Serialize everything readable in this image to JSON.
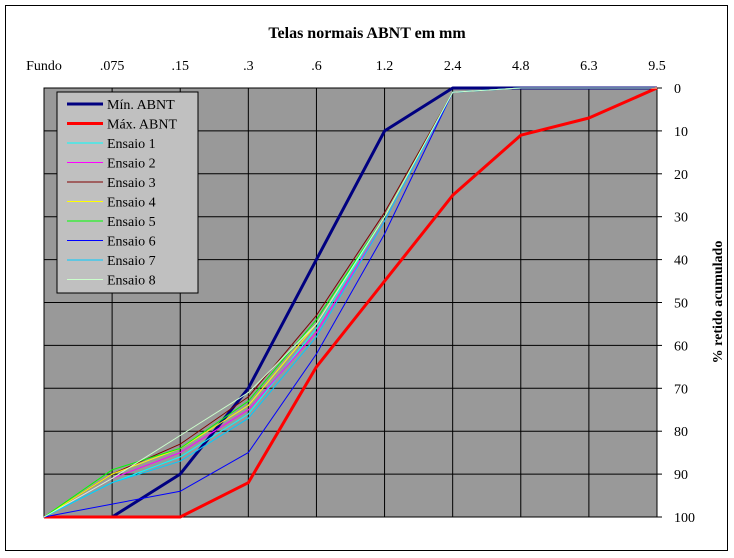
{
  "chart_data": {
    "type": "line",
    "title": "Telas normais ABNT em mm",
    "ylabel": "% retido acumulado",
    "xlabel": "",
    "categories": [
      "Fundo",
      ".075",
      ".15",
      ".3",
      ".6",
      "1.2",
      "2.4",
      "4.8",
      "6.3",
      "9.5"
    ],
    "ylim": [
      0,
      100
    ],
    "y_inverted": true,
    "y_ticks": [
      0,
      10,
      20,
      30,
      40,
      50,
      60,
      70,
      80,
      90,
      100
    ],
    "grid": true,
    "legend": "top-left",
    "plot_background": "#999999",
    "series": [
      {
        "name": "Mín. ABNT",
        "color": "#000080",
        "width": 3,
        "values": [
          100,
          100,
          90,
          70,
          40,
          10,
          0,
          0,
          0,
          0
        ]
      },
      {
        "name": "Máx. ABNT",
        "color": "#ff0000",
        "width": 3,
        "values": [
          100,
          100,
          100,
          92,
          65,
          45,
          25,
          11,
          7,
          0
        ]
      },
      {
        "name": "Ensaio 1",
        "color": "#00ffff",
        "width": 1,
        "values": [
          100,
          92,
          86,
          76,
          56,
          30,
          1,
          0,
          0,
          0
        ]
      },
      {
        "name": "Ensaio 2",
        "color": "#ff00ff",
        "width": 1,
        "values": [
          100,
          91,
          85,
          75,
          57,
          31,
          1,
          0,
          0,
          0
        ]
      },
      {
        "name": "Ensaio 3",
        "color": "#800000",
        "width": 1,
        "values": [
          100,
          90,
          83,
          72,
          53,
          29,
          1,
          0,
          0,
          0
        ]
      },
      {
        "name": "Ensaio 4",
        "color": "#ffff00",
        "width": 1,
        "values": [
          100,
          90,
          84,
          74,
          55,
          30,
          1,
          0,
          0,
          0
        ]
      },
      {
        "name": "Ensaio 5",
        "color": "#00ff00",
        "width": 1,
        "values": [
          100,
          89,
          84,
          73,
          54,
          30,
          1,
          0,
          0,
          0
        ]
      },
      {
        "name": "Ensaio 6",
        "color": "#0000ff",
        "width": 1,
        "values": [
          100,
          97,
          94,
          85,
          62,
          34,
          1,
          0,
          0,
          0
        ]
      },
      {
        "name": "Ensaio 7",
        "color": "#00ccff",
        "width": 1,
        "values": [
          100,
          92,
          87,
          77,
          58,
          31,
          1,
          0,
          0,
          0
        ]
      },
      {
        "name": "Ensaio 8",
        "color": "#ccffcc",
        "width": 1,
        "values": [
          100,
          91,
          81,
          71,
          55,
          30,
          1,
          0,
          0,
          0
        ]
      }
    ]
  }
}
